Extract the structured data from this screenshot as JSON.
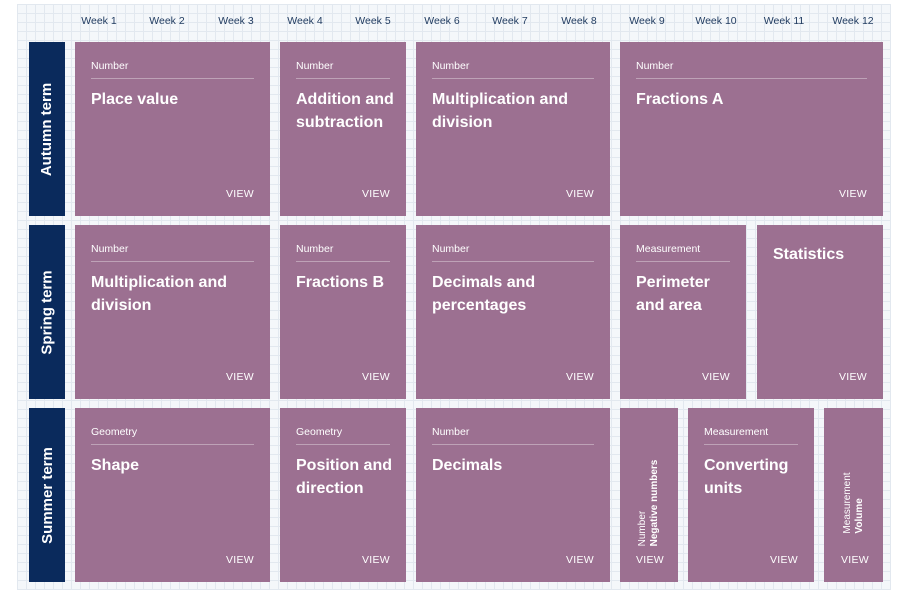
{
  "weeks": [
    "Week 1",
    "Week 2",
    "Week 3",
    "Week 4",
    "Week 5",
    "Week 6",
    "Week 7",
    "Week 8",
    "Week 9",
    "Week 10",
    "Week 11",
    "Week 12"
  ],
  "terms": {
    "autumn": "Autumn term",
    "spring": "Spring term",
    "summer": "Summer term"
  },
  "view_label": "VIEW",
  "autumn": [
    {
      "category": "Number",
      "title": "Place value"
    },
    {
      "category": "Number",
      "title": "Addition and subtraction"
    },
    {
      "category": "Number",
      "title": "Multiplication and division"
    },
    {
      "category": "Number",
      "title": "Fractions A"
    }
  ],
  "spring": [
    {
      "category": "Number",
      "title": "Multiplication and division"
    },
    {
      "category": "Number",
      "title": "Fractions B"
    },
    {
      "category": "Number",
      "title": "Decimals and percentages"
    },
    {
      "category": "Measurement",
      "title": "Perimeter and area"
    },
    {
      "title": "Statistics"
    }
  ],
  "summer": [
    {
      "category": "Geometry",
      "title": "Shape"
    },
    {
      "category": "Geometry",
      "title": "Position and direction"
    },
    {
      "category": "Number",
      "title": "Decimals"
    },
    {
      "category": "Number",
      "title": "Negative numbers"
    },
    {
      "category": "Measurement",
      "title": "Converting units"
    },
    {
      "category": "Measurement",
      "title": "Volume"
    }
  ],
  "colors": {
    "card": "#9c7091",
    "term_bar": "#0a2a5c",
    "week_text": "#1f3a5f"
  }
}
